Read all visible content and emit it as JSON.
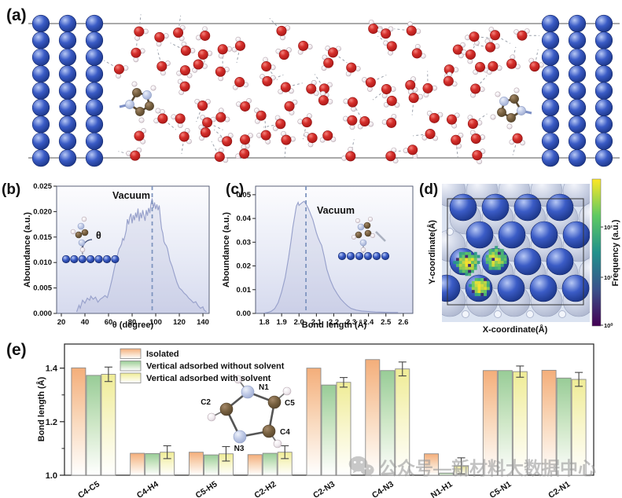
{
  "panels": {
    "a": "(a)",
    "b": "(b)",
    "c": "(c)",
    "d": "(d)",
    "e": "(e)"
  },
  "watermark": {
    "text": "公众号—新材料大数据中心"
  },
  "colors": {
    "metal": "#2c4fbc",
    "oxygen": "#c41e1e",
    "carbon": "#6b543a",
    "nitrogen": "#b9c4e0",
    "hydrogen": "#f5f2f4",
    "curve": "#98a1cb",
    "dashed_line": "#7f95bf",
    "bar_isolated": "#f4ae7a",
    "bar_without_solvent": "#98cc97",
    "bar_with_solvent": "#efec96"
  },
  "chart_data": [
    {
      "id": "b",
      "type": "line",
      "xlabel": "θ (degree)",
      "ylabel": "Aboundance (a.u.)",
      "annotation": "Vacuum",
      "theta_label": "θ",
      "xlim": [
        16,
        145.3
      ],
      "ylim": [
        0,
        0.025
      ],
      "xtick_vals": [
        20,
        40,
        60,
        80,
        100,
        120,
        140
      ],
      "xtick_labels": [
        "20",
        "40",
        "60",
        "80",
        "100",
        "120",
        "140"
      ],
      "ytick_vals": [
        0,
        0.005,
        0.01,
        0.015,
        0.02,
        0.025
      ],
      "ytick_labels": [
        "0.000",
        "0.005",
        "0.010",
        "0.015",
        "0.020",
        "0.025"
      ],
      "vline": 97,
      "points": [
        [
          33,
          0.0003
        ],
        [
          35,
          0.0016
        ],
        [
          36,
          0.001
        ],
        [
          38,
          0.0026
        ],
        [
          40,
          0.002
        ],
        [
          42,
          0.003
        ],
        [
          44,
          0.0026
        ],
        [
          45,
          0.0034
        ],
        [
          47,
          0.0028
        ],
        [
          49,
          0.0032
        ],
        [
          51,
          0.0022
        ],
        [
          53,
          0.0028
        ],
        [
          55,
          0.0031
        ],
        [
          57,
          0.0035
        ],
        [
          59,
          0.0031
        ],
        [
          61,
          0.0048
        ],
        [
          63,
          0.0067
        ],
        [
          65,
          0.0089
        ],
        [
          67,
          0.0109
        ],
        [
          69,
          0.0127
        ],
        [
          70,
          0.0131
        ],
        [
          71,
          0.0136
        ],
        [
          72,
          0.0147
        ],
        [
          73,
          0.0144
        ],
        [
          74,
          0.0153
        ],
        [
          75,
          0.0163
        ],
        [
          76,
          0.0185
        ],
        [
          77,
          0.0175
        ],
        [
          78,
          0.0189
        ],
        [
          79,
          0.0196
        ],
        [
          80,
          0.0177
        ],
        [
          81,
          0.0193
        ],
        [
          82,
          0.0183
        ],
        [
          83,
          0.0198
        ],
        [
          84,
          0.0188
        ],
        [
          85,
          0.0206
        ],
        [
          86,
          0.0181
        ],
        [
          87,
          0.0198
        ],
        [
          88,
          0.0187
        ],
        [
          89,
          0.0203
        ],
        [
          90,
          0.0192
        ],
        [
          91,
          0.0182
        ],
        [
          92,
          0.0203
        ],
        [
          93,
          0.0192
        ],
        [
          94,
          0.0207
        ],
        [
          95,
          0.0197
        ],
        [
          96,
          0.0215
        ],
        [
          97,
          0.0226
        ],
        [
          98,
          0.0207
        ],
        [
          99,
          0.0218
        ],
        [
          100,
          0.0205
        ],
        [
          101,
          0.0214
        ],
        [
          102,
          0.0203
        ],
        [
          103,
          0.0212
        ],
        [
          104,
          0.0187
        ],
        [
          105,
          0.0166
        ],
        [
          106,
          0.0158
        ],
        [
          107,
          0.0141
        ],
        [
          108,
          0.0136
        ],
        [
          109,
          0.0133
        ],
        [
          110,
          0.0127
        ],
        [
          112,
          0.0104
        ],
        [
          114,
          0.0092
        ],
        [
          116,
          0.0076
        ],
        [
          118,
          0.0061
        ],
        [
          120,
          0.005
        ],
        [
          122,
          0.0046
        ],
        [
          124,
          0.004
        ],
        [
          126,
          0.0036
        ],
        [
          128,
          0.003
        ],
        [
          130,
          0.0026
        ],
        [
          132,
          0.0021
        ],
        [
          134,
          0.0023
        ],
        [
          136,
          0.0015
        ],
        [
          138,
          0.001
        ],
        [
          140,
          0.0013
        ],
        [
          141,
          0.0007
        ],
        [
          143,
          0.0003
        ]
      ]
    },
    {
      "id": "c",
      "type": "line",
      "xlabel": "Bond length (Å)",
      "ylabel": "Aboundance (a.u.)",
      "annotation": "Vacuum",
      "xlim": [
        1.75,
        2.655
      ],
      "ylim": [
        0,
        0.0536
      ],
      "xtick_vals": [
        1.8,
        1.9,
        2.0,
        2.1,
        2.2,
        2.3,
        2.4,
        2.5,
        2.6
      ],
      "xtick_labels": [
        "1.8",
        "1.9",
        "2.0",
        "2.1",
        "2.2",
        "2.3",
        "2.4",
        "2.5",
        "2.6"
      ],
      "ytick_vals": [
        0,
        0.01,
        0.02,
        0.03,
        0.04,
        0.05
      ],
      "ytick_labels": [
        "0.00",
        "0.01",
        "0.02",
        "0.03",
        "0.04",
        "0.05"
      ],
      "vline": 2.04,
      "points": [
        [
          1.8,
          0.0002
        ],
        [
          1.82,
          0.0004
        ],
        [
          1.84,
          0.0009
        ],
        [
          1.86,
          0.002
        ],
        [
          1.88,
          0.0045
        ],
        [
          1.9,
          0.009
        ],
        [
          1.92,
          0.015
        ],
        [
          1.94,
          0.0235
        ],
        [
          1.955,
          0.031
        ],
        [
          1.965,
          0.0365
        ],
        [
          1.975,
          0.0408
        ],
        [
          1.985,
          0.0452
        ],
        [
          1.995,
          0.0468
        ],
        [
          2.0,
          0.0455
        ],
        [
          2.01,
          0.0462
        ],
        [
          2.02,
          0.0468
        ],
        [
          2.03,
          0.0472
        ],
        [
          2.04,
          0.0461
        ],
        [
          2.05,
          0.0447
        ],
        [
          2.06,
          0.0431
        ],
        [
          2.08,
          0.0394
        ],
        [
          2.1,
          0.034
        ],
        [
          2.11,
          0.0318
        ],
        [
          2.12,
          0.0301
        ],
        [
          2.13,
          0.0287
        ],
        [
          2.145,
          0.024
        ],
        [
          2.16,
          0.0186
        ],
        [
          2.18,
          0.0141
        ],
        [
          2.2,
          0.0107
        ],
        [
          2.22,
          0.0082
        ],
        [
          2.24,
          0.0061
        ],
        [
          2.26,
          0.0045
        ],
        [
          2.28,
          0.0031
        ],
        [
          2.3,
          0.0021
        ],
        [
          2.33,
          0.0014
        ],
        [
          2.36,
          0.001
        ],
        [
          2.4,
          0.0008
        ],
        [
          2.44,
          0.0006
        ],
        [
          2.48,
          0.0005
        ],
        [
          2.53,
          0.0004
        ],
        [
          2.57,
          0.0004
        ]
      ]
    },
    {
      "id": "d",
      "type": "heatmap",
      "xlabel": "X-coordinate(Å)",
      "ylabel": "Y-coordinate(Å)",
      "colorbar": {
        "label": "Frequency (a.u.)",
        "scale": "log",
        "ticks": [
          "10²",
          "10¹",
          "10⁰"
        ]
      },
      "description": "Lateral adsorption-frequency map on the metal surface; three high-frequency (green-yellow) regions in the lower-left quadrant of the unit cell",
      "blobs": [
        [
          0.145,
          0.607,
          16,
          1.0
        ],
        [
          0.358,
          0.57,
          15,
          0.95
        ],
        [
          0.243,
          0.83,
          13,
          1.15
        ]
      ]
    },
    {
      "id": "e",
      "type": "bar",
      "ylabel": "Bond length (Å)",
      "categories": [
        "C4-C5",
        "C4-H4",
        "C5-H5",
        "C2-H2",
        "C2-N3",
        "C4-N3",
        "N1-H1",
        "C5-N1",
        "C2-N1"
      ],
      "series": [
        {
          "name": "Isolated",
          "values": [
            1.401,
            1.082,
            1.086,
            1.077,
            1.4,
            1.432,
            1.08,
            1.391,
            1.392
          ]
        },
        {
          "name": "Vertical adsorbed without solvent",
          "values": [
            1.373,
            1.081,
            1.076,
            1.082,
            1.337,
            1.391,
            1.008,
            1.391,
            1.363
          ]
        },
        {
          "name": "Vertical adsorbed  with solvent",
          "values": [
            1.377,
            1.086,
            1.08,
            1.086,
            1.347,
            1.397,
            1.035,
            1.387,
            1.358
          ],
          "errors": [
            0.027,
            0.024,
            0.027,
            0.024,
            0.018,
            0.026,
            0.03,
            0.021,
            0.026
          ]
        }
      ],
      "ylim": [
        1.0,
        1.49
      ],
      "ytick_vals": [
        1.0,
        1.2,
        1.4
      ],
      "ytick_labels": [
        "1.0",
        "1.2",
        "1.4"
      ],
      "legend_position": "top-left-inside",
      "molecule_atom_labels": [
        "N1",
        "C5",
        "C2",
        "C4",
        "N3"
      ]
    }
  ]
}
